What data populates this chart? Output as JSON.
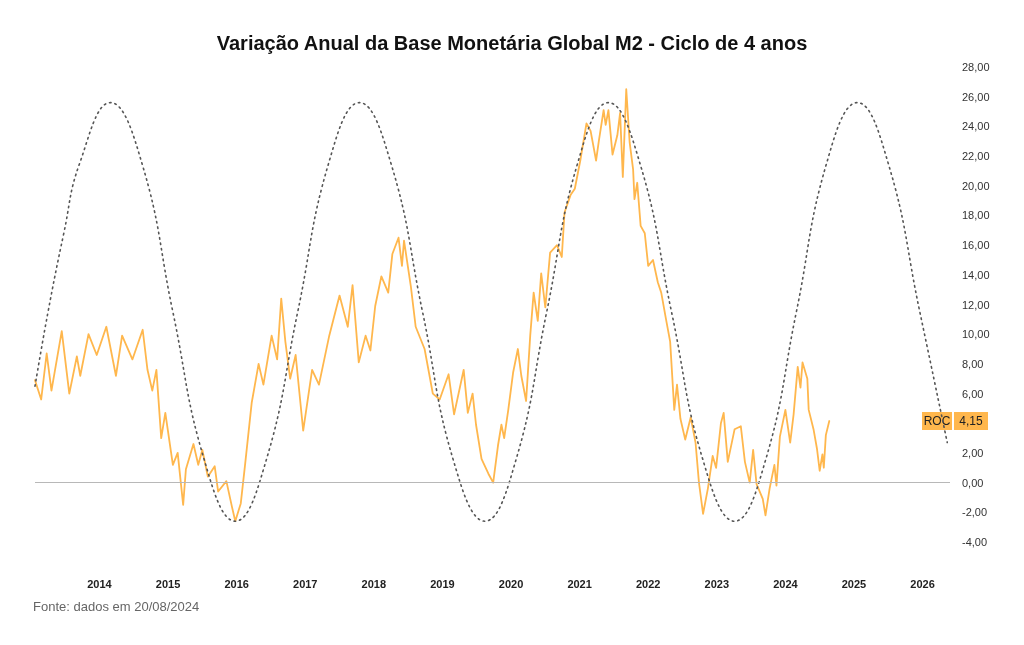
{
  "chart_data": {
    "type": "line",
    "title": "Variação Anual da Base Monetária Global M2 - Ciclo de 4 anos",
    "xlim": [
      2013.06,
      2026.4
    ],
    "xticks": [
      2014,
      2015,
      2016,
      2017,
      2018,
      2019,
      2020,
      2021,
      2022,
      2023,
      2024,
      2025,
      2026
    ],
    "ylim": [
      -4,
      28
    ],
    "yticks": [
      {
        "value": -4,
        "label": "-4,00"
      },
      {
        "value": -2,
        "label": "-2,00"
      },
      {
        "value": 0,
        "label": "0,00"
      },
      {
        "value": 2,
        "label": "2,00"
      },
      {
        "value": 6,
        "label": "6,00"
      },
      {
        "value": 8,
        "label": "8,00"
      },
      {
        "value": 10,
        "label": "10,00"
      },
      {
        "value": 12,
        "label": "12,00"
      },
      {
        "value": 14,
        "label": "14,00"
      },
      {
        "value": 16,
        "label": "16,00"
      },
      {
        "value": 18,
        "label": "18,00"
      },
      {
        "value": 20,
        "label": "20,00"
      },
      {
        "value": 22,
        "label": "22,00"
      },
      {
        "value": 24,
        "label": "24,00"
      },
      {
        "value": 26,
        "label": "26,00"
      },
      {
        "value": 28,
        "label": "28,00"
      }
    ],
    "grid": false,
    "marker": "none",
    "ref_lines": [
      {
        "axis": "y",
        "value": 0,
        "color": "#b8b8b8"
      }
    ],
    "annotations": [
      "Fonte: dados em 20/08/2024",
      "ROC",
      "4,15"
    ],
    "series": [
      {
        "color": "#ffb74d",
        "line_style": "solid",
        "x": [
          2013.06,
          2013.15,
          2013.23,
          2013.3,
          2013.45,
          2013.56,
          2013.67,
          2013.72,
          2013.84,
          2013.96,
          2014.1,
          2014.24,
          2014.33,
          2014.48,
          2014.63,
          2014.7,
          2014.77,
          2014.83,
          2014.9,
          2014.96,
          2015.07,
          2015.14,
          2015.22,
          2015.26,
          2015.37,
          2015.44,
          2015.5,
          2015.58,
          2015.68,
          2015.73,
          2015.85,
          2015.93,
          2015.98,
          2016.06,
          2016.12,
          2016.22,
          2016.32,
          2016.39,
          2016.51,
          2016.59,
          2016.65,
          2016.71,
          2016.78,
          2016.86,
          2016.97,
          2017.1,
          2017.2,
          2017.35,
          2017.5,
          2017.62,
          2017.69,
          2017.78,
          2017.88,
          2017.95,
          2018.02,
          2018.11,
          2018.21,
          2018.27,
          2018.36,
          2018.41,
          2018.44,
          2018.54,
          2018.61,
          2018.74,
          2018.86,
          2018.96,
          2019.09,
          2019.17,
          2019.31,
          2019.37,
          2019.44,
          2019.49,
          2019.57,
          2019.67,
          2019.74,
          2019.81,
          2019.86,
          2019.9,
          2019.96,
          2020.03,
          2020.1,
          2020.15,
          2020.22,
          2020.28,
          2020.33,
          2020.39,
          2020.44,
          2020.5,
          2020.57,
          2020.67,
          2020.74,
          2020.78,
          2020.87,
          2020.93,
          2021.01,
          2021.1,
          2021.16,
          2021.24,
          2021.28,
          2021.35,
          2021.38,
          2021.42,
          2021.48,
          2021.55,
          2021.59,
          2021.63,
          2021.68,
          2021.73,
          2021.78,
          2021.8,
          2021.84,
          2021.89,
          2021.95,
          2022,
          2022.07,
          2022.14,
          2022.19,
          2022.26,
          2022.32,
          2022.38,
          2022.42,
          2022.47,
          2022.54,
          2022.62,
          2022.69,
          2022.74,
          2022.8,
          2022.87,
          2022.94,
          2022.99,
          2023.06,
          2023.1,
          2023.16,
          2023.26,
          2023.35,
          2023.41,
          2023.48,
          2023.53,
          2023.58,
          2023.67,
          2023.71,
          2023.77,
          2023.84,
          2023.87,
          2023.92,
          2024,
          2024.07,
          2024.12,
          2024.18,
          2024.22,
          2024.25,
          2024.32,
          2024.34,
          2024.41,
          2024.46,
          2024.5,
          2024.54,
          2024.56,
          2024.59,
          2024.64
        ],
        "values": [
          6.9,
          5.6,
          8.7,
          6.2,
          10.2,
          6,
          8.5,
          7.2,
          10,
          8.6,
          10.5,
          7.2,
          9.9,
          8.3,
          10.3,
          7.6,
          6.2,
          7.6,
          3,
          4.7,
          1.2,
          2,
          -1.5,
          0.9,
          2.6,
          1.2,
          2.2,
          0.4,
          1.1,
          -0.6,
          0.1,
          -1.6,
          -2.6,
          -1.4,
          1.1,
          5.4,
          8,
          6.6,
          9.9,
          8.3,
          12.4,
          9.5,
          7,
          8.6,
          3.5,
          7.6,
          6.6,
          9.9,
          12.6,
          10.5,
          13.3,
          8.1,
          9.9,
          8.9,
          11.9,
          13.9,
          12.8,
          15.4,
          16.5,
          14.6,
          16.3,
          13.2,
          10.5,
          9,
          6,
          5.6,
          7.3,
          4.6,
          7.6,
          4.7,
          6,
          3.9,
          1.6,
          0.6,
          0,
          2.5,
          3.9,
          3,
          4.9,
          7.4,
          9,
          7.2,
          5.5,
          9.9,
          12.8,
          10.9,
          14.1,
          11.8,
          15.5,
          16,
          15.2,
          18.2,
          19.4,
          19.8,
          21.7,
          24.2,
          23.7,
          21.7,
          23,
          25.1,
          24.1,
          25.1,
          22.1,
          23.4,
          24.9,
          20.6,
          26.5,
          22.9,
          21.1,
          19.1,
          20.2,
          17.3,
          16.8,
          14.6,
          15,
          13.5,
          12.8,
          11,
          9.5,
          4.9,
          6.6,
          4.3,
          2.9,
          4.4,
          2.7,
          0,
          -2.1,
          -0.4,
          1.8,
          1,
          4,
          4.7,
          1.4,
          3.6,
          3.8,
          1.4,
          0,
          2.2,
          -0.1,
          -1.1,
          -2.2,
          -0.4,
          1.2,
          -0.2,
          3.1,
          4.9,
          2.7,
          4.6,
          7.8,
          6.4,
          8.1,
          7,
          4.9,
          3.6,
          2.3,
          0.8,
          1.9,
          1,
          3.2,
          4.15
        ]
      },
      {
        "color": "#555555",
        "line_style": "dotted",
        "x": [
          2013.06,
          2013.25,
          2013.48,
          2013.71,
          2014.16,
          2014.62,
          2015.07,
          2015.53,
          2015.98,
          2016.43,
          2016.89,
          2017.34,
          2017.79,
          2018.25,
          2018.71,
          2019.16,
          2019.62,
          2020.07,
          2020.52,
          2020.97,
          2021.42,
          2021.88,
          2022.34,
          2022.8,
          2023.26,
          2023.71,
          2024.16,
          2024.6,
          2025.05,
          2025.5,
          2025.96,
          2026.36
        ],
        "values": [
          6.5,
          11.5,
          16.8,
          21.5,
          25.6,
          21.5,
          11.5,
          1.5,
          -2.6,
          1.5,
          11.5,
          21.5,
          25.6,
          21.5,
          11.5,
          1.5,
          -2.6,
          1.5,
          11.5,
          21.5,
          25.6,
          21.5,
          11.5,
          1.5,
          -2.6,
          1.5,
          11.5,
          21.5,
          25.6,
          21.5,
          11.5,
          2.7
        ]
      }
    ]
  }
}
